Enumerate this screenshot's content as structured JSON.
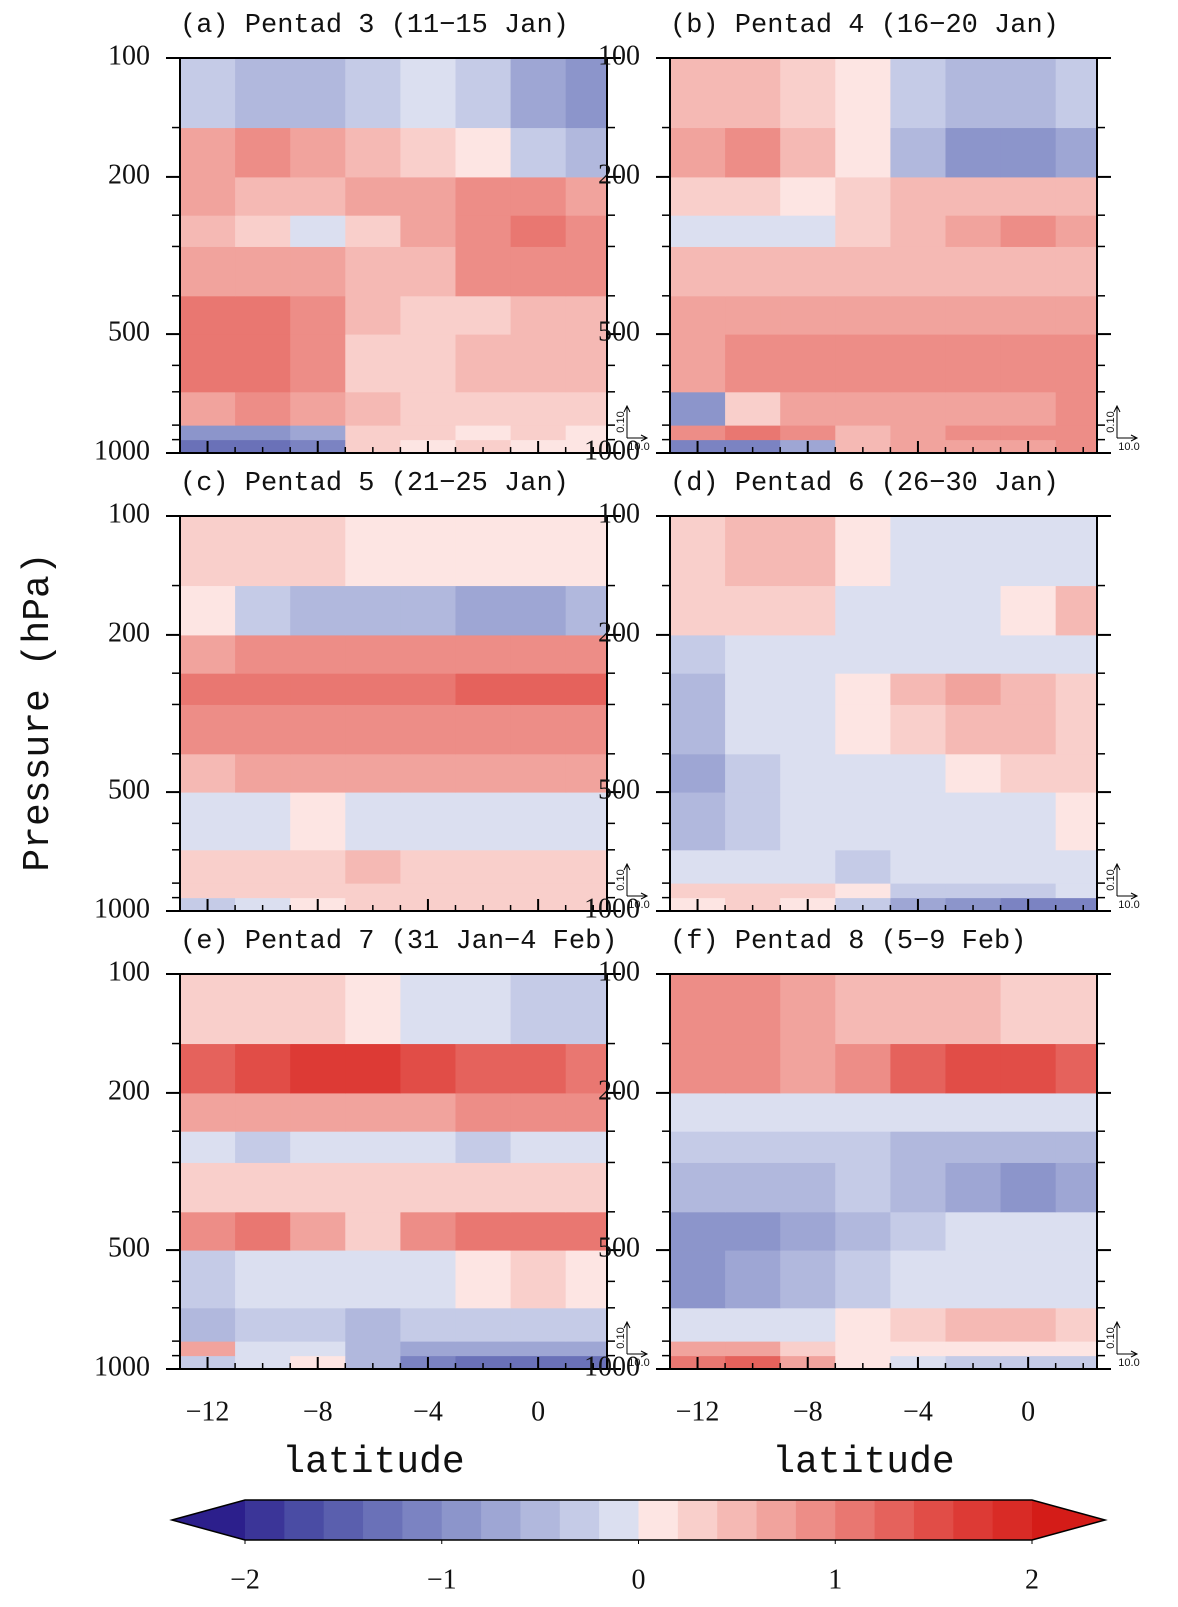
{
  "figure": {
    "ylabel": "Pressure (hPa)",
    "colorbar": {
      "lim": [
        -2,
        2
      ],
      "colors": [
        "#2c1f8c",
        "#3b3598",
        "#4a4ca4",
        "#5a5fae",
        "#6a71b8",
        "#7b83c2",
        "#8c95cb",
        "#9ea6d4",
        "#b1b8dd",
        "#c5cbe7",
        "#dbdff0",
        "#fde5e3",
        "#f9cfcb",
        "#f5b9b4",
        "#f1a39d",
        "#ed8d87",
        "#e97771",
        "#e5625c",
        "#e14d47",
        "#dd3a35",
        "#d92b26",
        "#d41c18"
      ],
      "ticks": [
        {
          "value": -2,
          "label": "−2"
        },
        {
          "value": -1,
          "label": "−1"
        },
        0,
        1,
        2
      ]
    }
  },
  "chart_data": [
    {
      "type": "heatmap",
      "title": "(a) Pentad 3 (11−15 Jan)",
      "log_y": true,
      "xlim": [
        -13,
        2.5
      ],
      "ylim": [
        1000,
        100
      ],
      "xticks": [
        -12,
        -8,
        -4,
        0
      ],
      "xticklabels": false,
      "yticks": [
        100,
        200,
        500,
        1000
      ],
      "yminorticks": [
        150,
        250,
        300,
        400,
        600,
        700,
        850,
        925
      ],
      "xminorticks": [
        -13,
        -11,
        -10,
        -9,
        -7,
        -6,
        -5,
        -3,
        -2,
        -1,
        1,
        2
      ],
      "vector_reference": [
        {
          "value": 0.1,
          "label": "0.10"
        },
        {
          "value": 10,
          "label": "10.0"
        }
      ],
      "xbins": [
        -13,
        -11,
        -9,
        -7,
        -5,
        -3,
        -1,
        1,
        2.5
      ],
      "ybins": [
        1000,
        925,
        850,
        700,
        500,
        400,
        300,
        250,
        200,
        150,
        100
      ],
      "values": [
        [
          -1.4,
          -1.4,
          -1.2,
          0.2,
          0.1,
          0.2,
          0.1,
          0.1
        ],
        [
          -1.0,
          -1.0,
          -0.8,
          0.2,
          0.2,
          0.1,
          0.2,
          0.1
        ],
        [
          0.6,
          0.8,
          0.6,
          0.4,
          0.2,
          0.2,
          0.3,
          0.3
        ],
        [
          1.0,
          1.0,
          0.8,
          0.2,
          0.2,
          0.4,
          0.4,
          0.4
        ],
        [
          1.0,
          1.0,
          0.8,
          0.4,
          0.2,
          0.3,
          0.4,
          0.4
        ],
        [
          0.6,
          0.6,
          0.6,
          0.4,
          0.4,
          0.8,
          0.8,
          0.8
        ],
        [
          0.4,
          0.2,
          -0.2,
          0.2,
          0.6,
          0.8,
          1.0,
          0.9
        ],
        [
          0.6,
          0.4,
          0.4,
          0.6,
          0.6,
          0.8,
          0.8,
          0.6
        ],
        [
          0.6,
          0.8,
          0.6,
          0.4,
          0.2,
          0.0,
          -0.4,
          -0.6
        ],
        [
          -0.4,
          -0.6,
          -0.6,
          -0.4,
          -0.2,
          -0.4,
          -0.8,
          -1.0
        ]
      ]
    },
    {
      "type": "heatmap",
      "title": "(b) Pentad 4 (16−20 Jan)",
      "log_y": true,
      "xlim": [
        -13,
        2.5
      ],
      "ylim": [
        1000,
        100
      ],
      "xticks": [
        -12,
        -8,
        -4,
        0
      ],
      "xticklabels": false,
      "yticks": [
        100,
        200,
        500,
        1000
      ],
      "yminorticks": [
        150,
        250,
        300,
        400,
        600,
        700,
        850,
        925
      ],
      "xminorticks": [
        -13,
        -11,
        -10,
        -9,
        -7,
        -6,
        -5,
        -3,
        -2,
        -1,
        1,
        2
      ],
      "vector_reference": [
        {
          "value": 0.1,
          "label": "0.10"
        },
        {
          "value": 10,
          "label": "10.0"
        }
      ],
      "xbins": [
        -13,
        -11,
        -9,
        -7,
        -5,
        -3,
        -1,
        1,
        2.5
      ],
      "ybins": [
        1000,
        925,
        850,
        700,
        500,
        400,
        300,
        250,
        200,
        150,
        100
      ],
      "values": [
        [
          -1.2,
          -1.2,
          -0.8,
          0.4,
          0.6,
          0.6,
          0.6,
          0.8
        ],
        [
          0.8,
          1.0,
          0.8,
          0.4,
          0.6,
          0.8,
          0.8,
          0.8
        ],
        [
          -1.0,
          0.2,
          0.6,
          0.6,
          0.6,
          0.6,
          0.6,
          0.8
        ],
        [
          0.6,
          0.8,
          0.8,
          0.8,
          0.8,
          0.8,
          0.8,
          0.8
        ],
        [
          0.6,
          0.6,
          0.6,
          0.6,
          0.6,
          0.6,
          0.6,
          0.6
        ],
        [
          0.4,
          0.4,
          0.4,
          0.4,
          0.4,
          0.4,
          0.4,
          0.4
        ],
        [
          -0.2,
          -0.2,
          -0.2,
          0.2,
          0.4,
          0.6,
          0.8,
          0.6
        ],
        [
          0.2,
          0.2,
          0.0,
          0.2,
          0.4,
          0.4,
          0.4,
          0.4
        ],
        [
          0.6,
          0.8,
          0.4,
          0.0,
          -0.6,
          -1.0,
          -1.0,
          -0.8
        ],
        [
          0.4,
          0.4,
          0.2,
          0.0,
          -0.4,
          -0.6,
          -0.6,
          -0.4
        ]
      ]
    },
    {
      "type": "heatmap",
      "title": "(c) Pentad 5 (21−25 Jan)",
      "log_y": true,
      "xlim": [
        -13,
        2.5
      ],
      "ylim": [
        1000,
        100
      ],
      "xticks": [
        -12,
        -8,
        -4,
        0
      ],
      "xticklabels": false,
      "yticks": [
        100,
        200,
        500,
        1000
      ],
      "yminorticks": [
        150,
        250,
        300,
        400,
        600,
        700,
        850,
        925
      ],
      "xminorticks": [
        -13,
        -11,
        -10,
        -9,
        -7,
        -6,
        -5,
        -3,
        -2,
        -1,
        1,
        2
      ],
      "vector_reference": [
        {
          "value": 0.1,
          "label": "0.10"
        },
        {
          "value": 10,
          "label": "10.0"
        }
      ],
      "xbins": [
        -13,
        -11,
        -9,
        -7,
        -5,
        -3,
        -1,
        1,
        2.5
      ],
      "ybins": [
        1000,
        925,
        850,
        700,
        500,
        400,
        300,
        250,
        200,
        150,
        100
      ],
      "values": [
        [
          -0.4,
          -0.2,
          0.0,
          0.2,
          0.2,
          0.2,
          0.2,
          0.2
        ],
        [
          0.2,
          0.2,
          0.2,
          0.2,
          0.2,
          0.2,
          0.2,
          0.2
        ],
        [
          0.2,
          0.2,
          0.2,
          0.4,
          0.2,
          0.2,
          0.2,
          0.2
        ],
        [
          -0.2,
          -0.2,
          0.0,
          -0.2,
          -0.2,
          -0.2,
          -0.2,
          -0.2
        ],
        [
          0.4,
          0.6,
          0.6,
          0.6,
          0.6,
          0.6,
          0.6,
          0.6
        ],
        [
          0.8,
          0.8,
          0.8,
          0.8,
          0.8,
          0.8,
          0.8,
          0.8
        ],
        [
          1.0,
          1.0,
          1.0,
          1.0,
          1.0,
          1.2,
          1.2,
          1.2
        ],
        [
          0.6,
          0.8,
          0.8,
          0.8,
          0.8,
          0.8,
          0.8,
          0.8
        ],
        [
          0.0,
          -0.4,
          -0.6,
          -0.6,
          -0.6,
          -0.8,
          -0.8,
          -0.6
        ],
        [
          0.2,
          0.2,
          0.2,
          0.0,
          0.0,
          0.0,
          0.0,
          0.0
        ]
      ]
    },
    {
      "type": "heatmap",
      "title": "(d) Pentad 6 (26−30 Jan)",
      "log_y": true,
      "xlim": [
        -13,
        2.5
      ],
      "ylim": [
        1000,
        100
      ],
      "xticks": [
        -12,
        -8,
        -4,
        0
      ],
      "xticklabels": false,
      "yticks": [
        100,
        200,
        500,
        1000
      ],
      "yminorticks": [
        150,
        250,
        300,
        400,
        600,
        700,
        850,
        925
      ],
      "xminorticks": [
        -13,
        -11,
        -10,
        -9,
        -7,
        -6,
        -5,
        -3,
        -2,
        -1,
        1,
        2
      ],
      "vector_reference": [
        {
          "value": 0.1,
          "label": "0.10"
        },
        {
          "value": 10,
          "label": "10.0"
        }
      ],
      "xbins": [
        -13,
        -11,
        -9,
        -7,
        -5,
        -3,
        -1,
        1,
        2.5
      ],
      "ybins": [
        1000,
        925,
        850,
        700,
        500,
        400,
        300,
        250,
        200,
        150,
        100
      ],
      "values": [
        [
          0.0,
          0.2,
          0.0,
          -0.4,
          -0.8,
          -1.0,
          -1.2,
          -1.2
        ],
        [
          0.2,
          0.2,
          0.2,
          0.0,
          -0.4,
          -0.4,
          -0.4,
          -0.2
        ],
        [
          -0.2,
          -0.2,
          -0.2,
          -0.4,
          -0.2,
          -0.2,
          -0.2,
          -0.2
        ],
        [
          -0.6,
          -0.4,
          -0.2,
          -0.2,
          -0.2,
          -0.2,
          -0.2,
          0.0
        ],
        [
          -0.8,
          -0.4,
          -0.2,
          -0.2,
          -0.2,
          0.0,
          0.2,
          0.2
        ],
        [
          -0.6,
          -0.2,
          -0.2,
          0.0,
          0.2,
          0.4,
          0.4,
          0.2
        ],
        [
          -0.6,
          -0.2,
          -0.2,
          0.0,
          0.4,
          0.6,
          0.4,
          0.2
        ],
        [
          -0.4,
          -0.2,
          -0.2,
          -0.2,
          -0.2,
          -0.2,
          -0.2,
          -0.2
        ],
        [
          0.2,
          0.2,
          0.2,
          -0.2,
          -0.2,
          -0.2,
          0.0,
          0.4
        ],
        [
          0.2,
          0.4,
          0.4,
          0.0,
          -0.2,
          -0.2,
          -0.2,
          -0.2
        ]
      ]
    },
    {
      "type": "heatmap",
      "title": "(e) Pentad 7 (31 Jan−4 Feb)",
      "xlabel": "latitude",
      "log_y": true,
      "xlim": [
        -13,
        2.5
      ],
      "ylim": [
        1000,
        100
      ],
      "xticks": [
        {
          "value": -12,
          "label": "−12"
        },
        {
          "value": -8,
          "label": "−8"
        },
        {
          "value": -4,
          "label": "−4"
        },
        0
      ],
      "yticks": [
        100,
        200,
        500,
        1000
      ],
      "yminorticks": [
        150,
        250,
        300,
        400,
        600,
        700,
        850,
        925
      ],
      "xminorticks": [
        -13,
        -11,
        -10,
        -9,
        -7,
        -6,
        -5,
        -3,
        -2,
        -1,
        1,
        2
      ],
      "vector_reference": [
        {
          "value": 0.1,
          "label": "0.10"
        },
        {
          "value": 10,
          "label": "10.0"
        }
      ],
      "xbins": [
        -13,
        -11,
        -9,
        -7,
        -5,
        -3,
        -1,
        1,
        2.5
      ],
      "ybins": [
        1000,
        925,
        850,
        700,
        500,
        400,
        300,
        250,
        200,
        150,
        100
      ],
      "values": [
        [
          -0.4,
          -0.2,
          0.0,
          -0.6,
          -1.2,
          -1.4,
          -1.4,
          -1.4
        ],
        [
          0.6,
          -0.2,
          -0.2,
          -0.6,
          -0.8,
          -0.8,
          -0.8,
          -0.8
        ],
        [
          -0.6,
          -0.4,
          -0.4,
          -0.6,
          -0.4,
          -0.4,
          -0.4,
          -0.4
        ],
        [
          -0.4,
          -0.2,
          -0.2,
          -0.2,
          -0.2,
          0.0,
          0.2,
          0.0
        ],
        [
          0.8,
          1.0,
          0.6,
          0.2,
          0.8,
          1.0,
          1.0,
          1.0
        ],
        [
          0.2,
          0.2,
          0.2,
          0.2,
          0.2,
          0.2,
          0.2,
          0.2
        ],
        [
          -0.2,
          -0.4,
          -0.2,
          -0.2,
          -0.2,
          -0.4,
          -0.2,
          -0.2
        ],
        [
          0.6,
          0.6,
          0.6,
          0.6,
          0.6,
          0.8,
          0.8,
          0.8
        ],
        [
          1.2,
          1.4,
          1.6,
          1.6,
          1.4,
          1.2,
          1.2,
          1.0
        ],
        [
          0.2,
          0.2,
          0.2,
          0.0,
          -0.2,
          -0.2,
          -0.4,
          -0.4
        ]
      ]
    },
    {
      "type": "heatmap",
      "title": "(f) Pentad 8 (5−9 Feb)",
      "xlabel": "latitude",
      "log_y": true,
      "xlim": [
        -13,
        2.5
      ],
      "ylim": [
        1000,
        100
      ],
      "xticks": [
        {
          "value": -12,
          "label": "−12"
        },
        {
          "value": -8,
          "label": "−8"
        },
        {
          "value": -4,
          "label": "−4"
        },
        0
      ],
      "yticks": [
        100,
        200,
        500,
        1000
      ],
      "yminorticks": [
        150,
        250,
        300,
        400,
        600,
        700,
        850,
        925
      ],
      "xminorticks": [
        -13,
        -11,
        -10,
        -9,
        -7,
        -6,
        -5,
        -3,
        -2,
        -1,
        1,
        2
      ],
      "vector_reference": [
        {
          "value": 0.1,
          "label": "0.10"
        },
        {
          "value": 10,
          "label": "10.0"
        }
      ],
      "xbins": [
        -13,
        -11,
        -9,
        -7,
        -5,
        -3,
        -1,
        1,
        2.5
      ],
      "ybins": [
        1000,
        925,
        850,
        700,
        500,
        400,
        300,
        250,
        200,
        150,
        100
      ],
      "values": [
        [
          1.0,
          1.2,
          0.6,
          0.0,
          -0.2,
          -0.4,
          -0.4,
          -0.4
        ],
        [
          0.6,
          0.6,
          0.2,
          0.0,
          0.0,
          0.0,
          0.0,
          0.0
        ],
        [
          -0.2,
          -0.2,
          -0.2,
          0.0,
          0.2,
          0.4,
          0.4,
          0.2
        ],
        [
          -1.0,
          -0.8,
          -0.6,
          -0.4,
          -0.2,
          -0.2,
          -0.2,
          -0.2
        ],
        [
          -1.0,
          -1.0,
          -0.8,
          -0.6,
          -0.4,
          -0.2,
          -0.2,
          -0.2
        ],
        [
          -0.6,
          -0.6,
          -0.6,
          -0.4,
          -0.6,
          -0.8,
          -1.0,
          -0.8
        ],
        [
          -0.4,
          -0.4,
          -0.4,
          -0.4,
          -0.6,
          -0.6,
          -0.6,
          -0.6
        ],
        [
          -0.2,
          -0.2,
          -0.2,
          -0.2,
          -0.2,
          -0.2,
          -0.2,
          -0.2
        ],
        [
          0.8,
          0.8,
          0.6,
          0.8,
          1.2,
          1.4,
          1.4,
          1.2
        ],
        [
          0.8,
          0.8,
          0.6,
          0.4,
          0.4,
          0.4,
          0.2,
          0.2
        ]
      ]
    }
  ]
}
